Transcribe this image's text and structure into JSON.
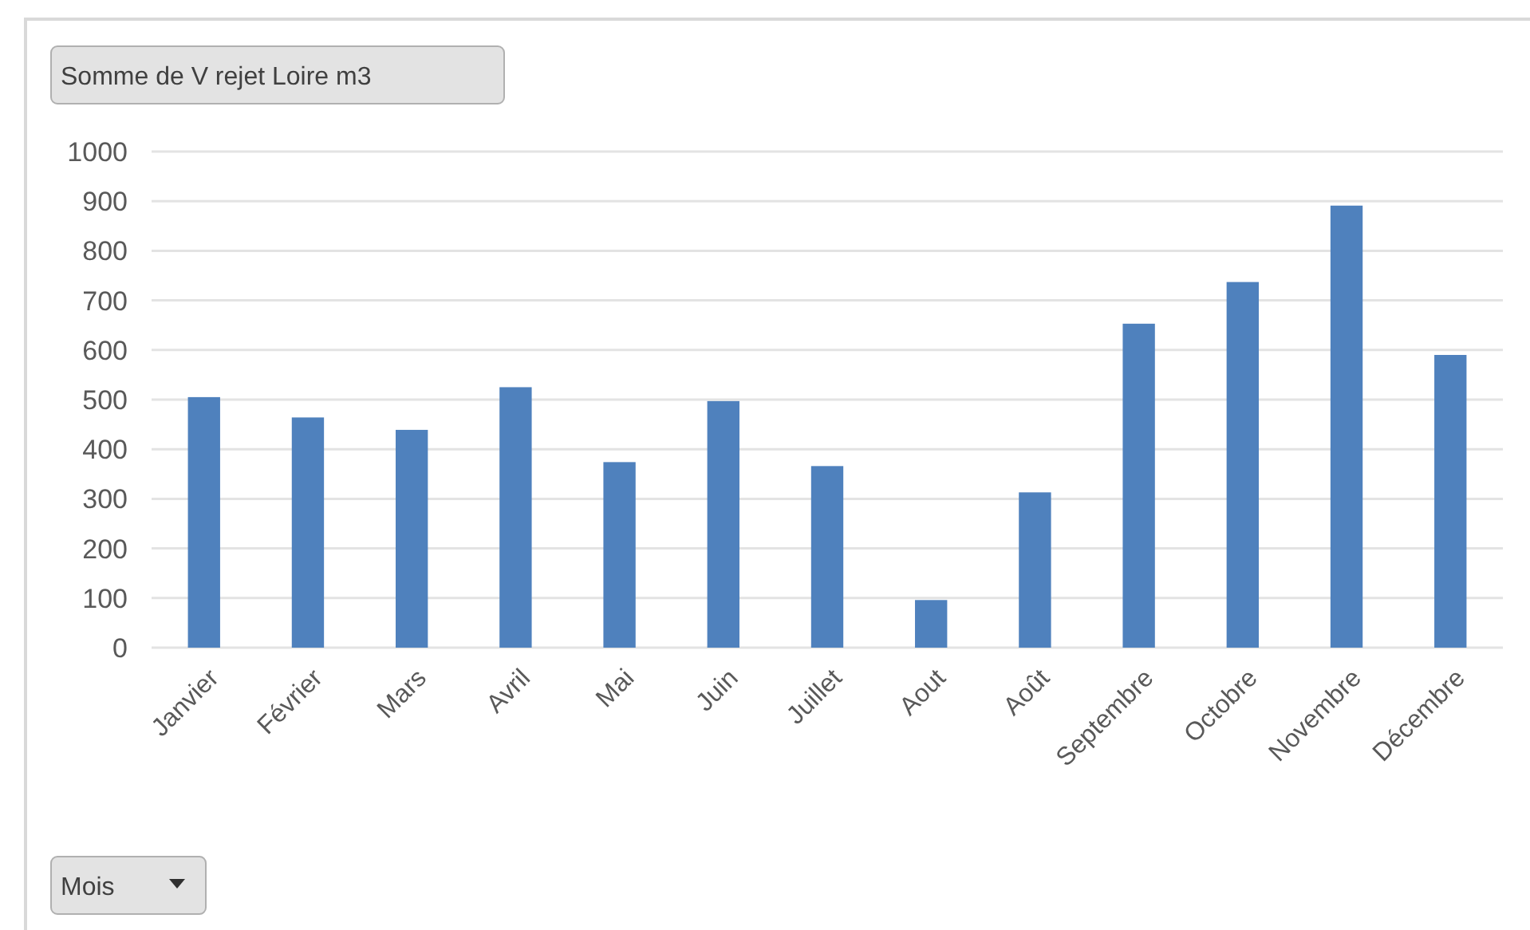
{
  "chart_data": {
    "type": "bar",
    "title": "Somme de V rejet Loire m3",
    "xlabel": "Mois",
    "categories": [
      "Janvier",
      "Février",
      "Mars",
      "Avril",
      "Mai",
      "Juin",
      "Juillet",
      "Aout",
      "Août",
      "Septembre",
      "Octobre",
      "Novembre",
      "Décembre"
    ],
    "values": [
      505,
      464,
      439,
      525,
      374,
      497,
      366,
      96,
      313,
      653,
      737,
      891,
      590
    ],
    "color": "#4f81bd",
    "ylim": [
      0,
      1000
    ],
    "yticks": [
      0,
      100,
      200,
      300,
      400,
      500,
      600,
      700,
      800,
      900,
      1000
    ],
    "grid": "y"
  }
}
